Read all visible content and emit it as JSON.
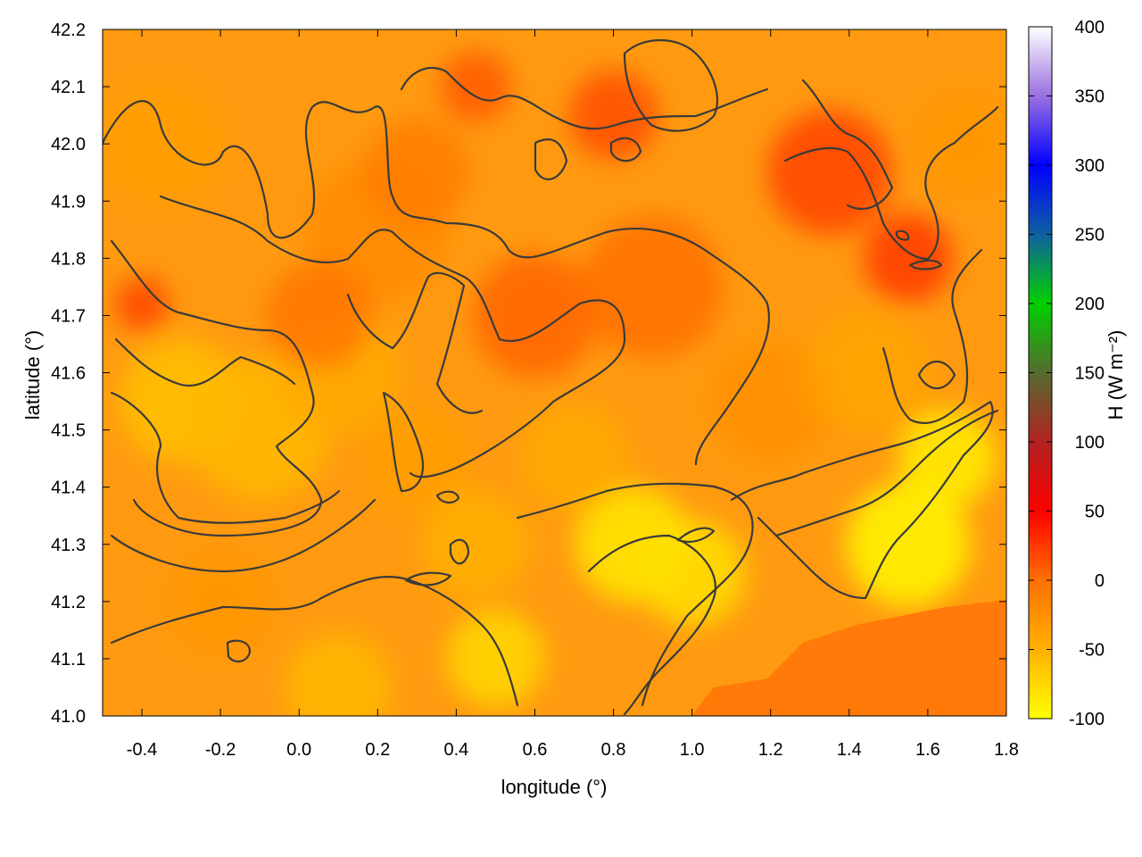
{
  "chart_data": {
    "type": "heatmap",
    "title": "",
    "xlabel": "longitude (°)",
    "ylabel": "latitude (°)",
    "xlim": [
      -0.5,
      1.8
    ],
    "ylim": [
      41.0,
      42.2
    ],
    "x_ticks": [
      "-0.4",
      "-0.2",
      "0.0",
      "0.2",
      "0.4",
      "0.6",
      "0.8",
      "1.0",
      "1.2",
      "1.4",
      "1.6",
      "1.8"
    ],
    "x_tick_values": [
      -0.4,
      -0.2,
      0.0,
      0.2,
      0.4,
      0.6,
      0.8,
      1.0,
      1.2,
      1.4,
      1.6,
      1.8
    ],
    "y_ticks": [
      "41.0",
      "41.1",
      "41.2",
      "41.3",
      "41.4",
      "41.5",
      "41.6",
      "41.7",
      "41.8",
      "41.9",
      "42.0",
      "42.1",
      "42.2"
    ],
    "y_tick_values": [
      41.0,
      41.1,
      41.2,
      41.3,
      41.4,
      41.5,
      41.6,
      41.7,
      41.8,
      41.9,
      42.0,
      42.1,
      42.2
    ],
    "colorbar": {
      "label": "H (W m⁻²)",
      "range": [
        -100,
        400
      ],
      "ticks": [
        "-100",
        "-50",
        "0",
        "50",
        "100",
        "150",
        "200",
        "250",
        "300",
        "350",
        "400"
      ],
      "tick_values": [
        -100,
        -50,
        0,
        50,
        100,
        150,
        200,
        250,
        300,
        350,
        400
      ],
      "stops": [
        {
          "value": -100,
          "color": "#ffff00"
        },
        {
          "value": -50,
          "color": "#ffb000"
        },
        {
          "value": 0,
          "color": "#ff7000"
        },
        {
          "value": 50,
          "color": "#ff0000"
        },
        {
          "value": 100,
          "color": "#b22222"
        },
        {
          "value": 150,
          "color": "#556b2f"
        },
        {
          "value": 200,
          "color": "#00d000"
        },
        {
          "value": 250,
          "color": "#1060a0"
        },
        {
          "value": 300,
          "color": "#0000ff"
        },
        {
          "value": 350,
          "color": "#9a70e0"
        },
        {
          "value": 400,
          "color": "#ffffff"
        }
      ]
    },
    "field_summary": {
      "dominant_range": [
        -60,
        30
      ],
      "high_region": "north-east around lon 1.2–1.6, lat 41.8–42.1 (~20 to 40)",
      "low_region": "south-east lowlands near lon 1.1–1.8, lat 41.2–41.5 (~ -90)"
    },
    "contour_color": "#3a3a3a"
  }
}
